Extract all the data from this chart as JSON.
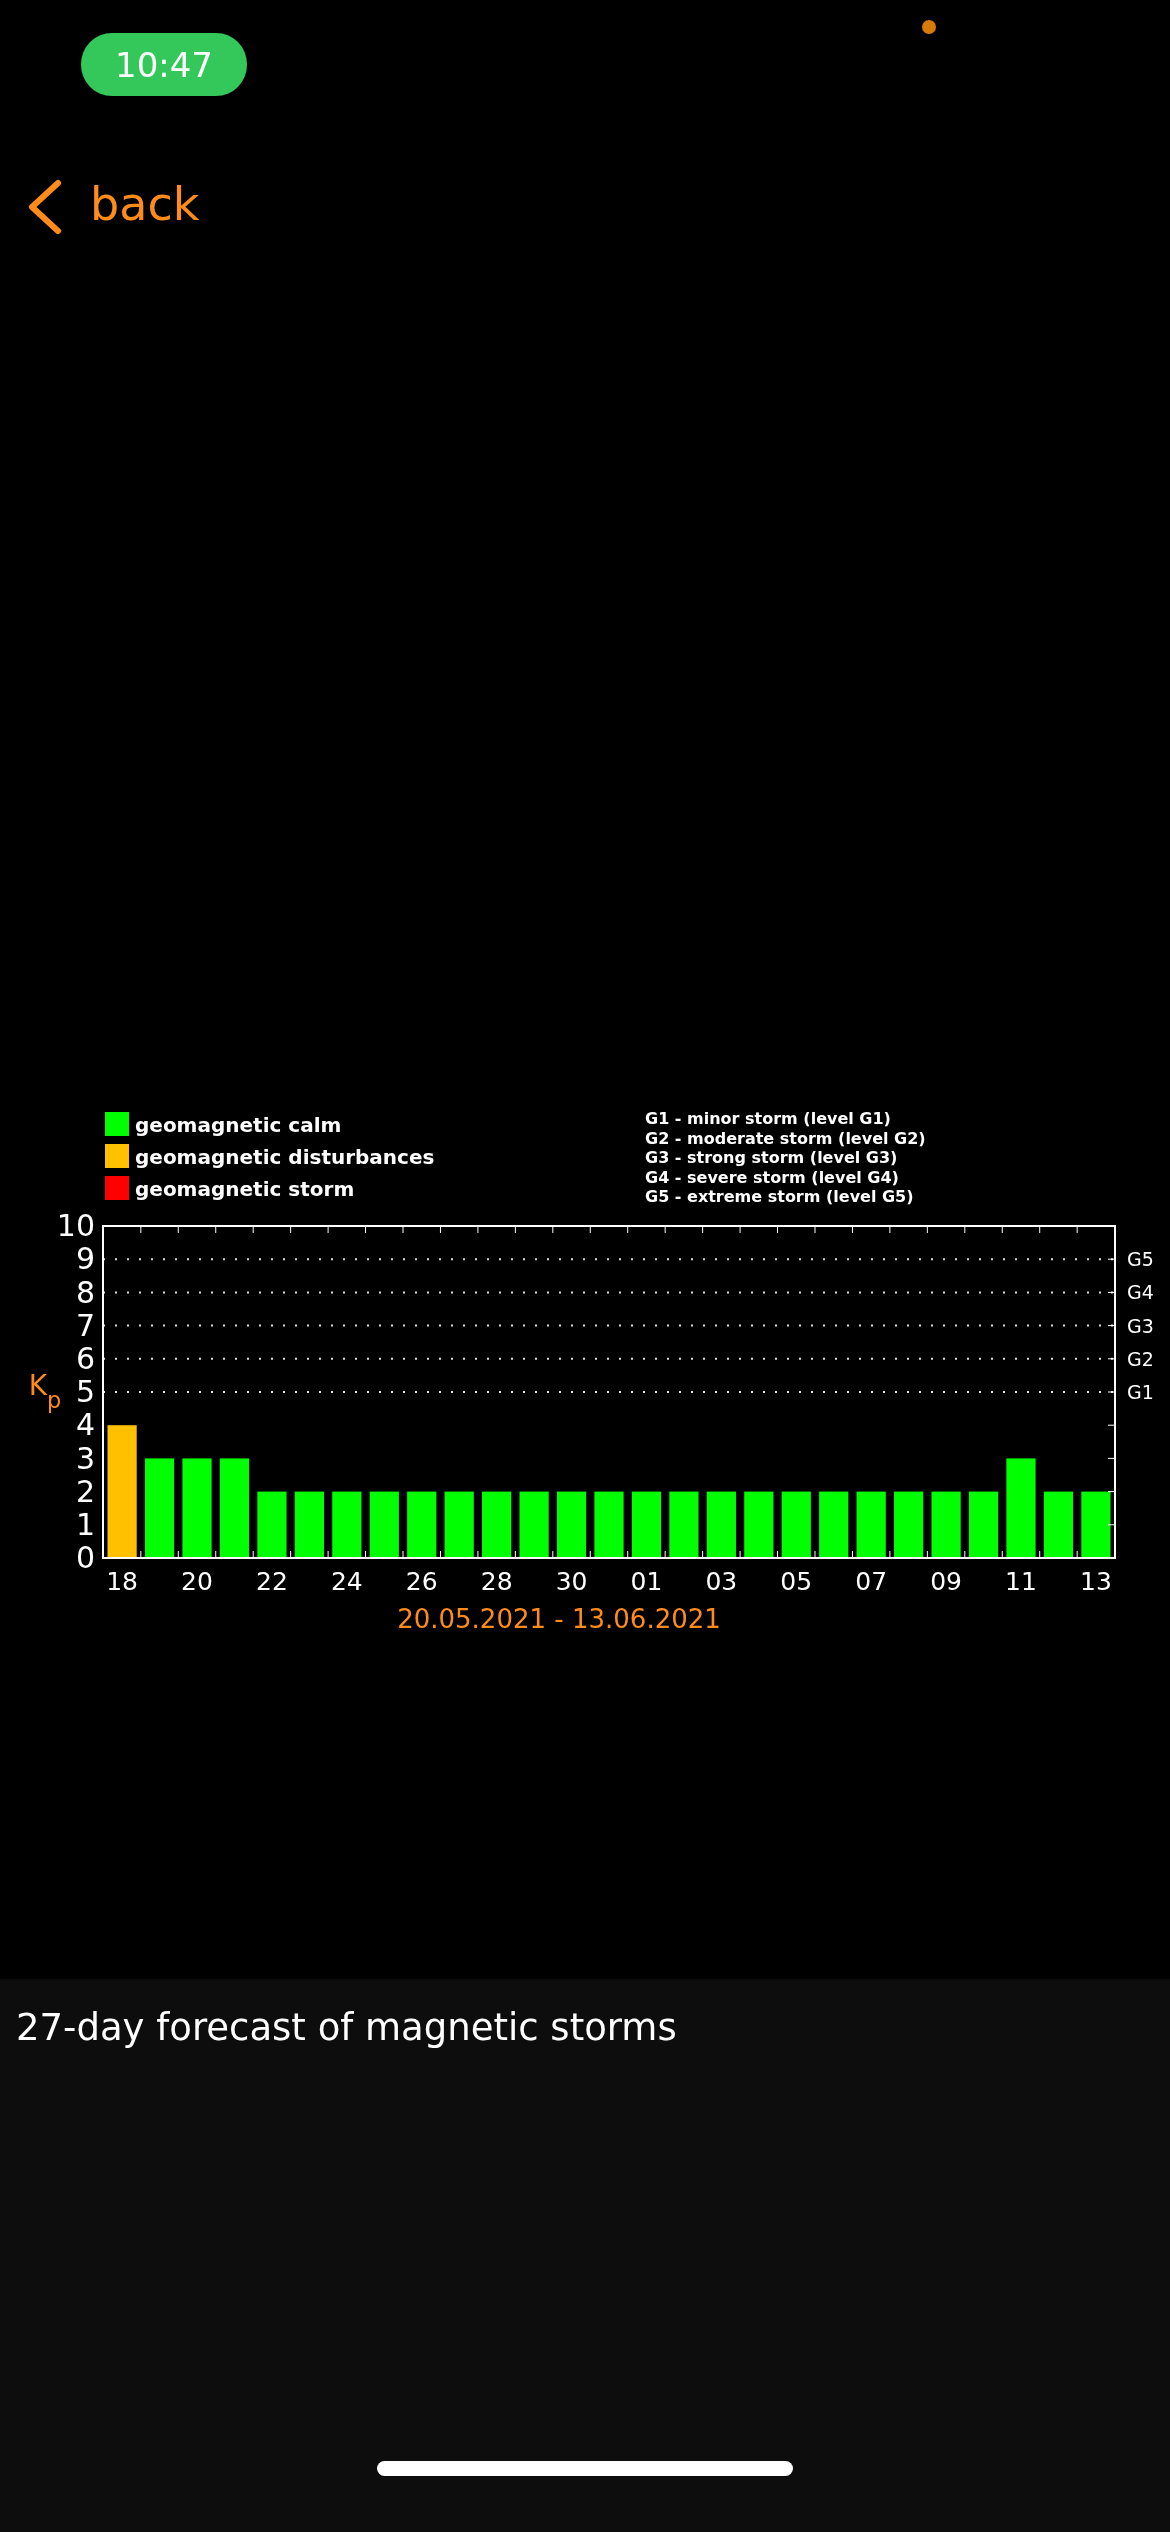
{
  "chart_data": {
    "type": "bar",
    "title": "27-day forecast of magnetic storms",
    "xlabel": "20.05.2021 - 13.06.2021",
    "ylabel": "K$_{p}$",
    "categories": [
      "18",
      null,
      "20",
      null,
      "22",
      null,
      "24",
      null,
      "26",
      null,
      "28",
      null,
      "30",
      null,
      "01",
      null,
      "03",
      null,
      "05",
      null,
      "07",
      null,
      "09",
      null,
      "11",
      null,
      "13"
    ],
    "series": [
      {
        "name": "geomagnetic calm",
        "color": "#00ff00",
        "values": [
          null,
          3,
          3,
          3,
          2,
          2,
          2,
          2,
          2,
          2,
          2,
          2,
          2,
          2,
          2,
          2,
          2,
          2,
          2,
          2,
          2,
          2,
          2,
          2,
          3,
          2,
          2
        ]
      },
      {
        "name": "geomagnetic disturbances",
        "color": "#ffc000",
        "values": [
          4,
          null,
          null,
          null,
          null,
          null,
          null,
          null,
          null,
          null,
          null,
          null,
          null,
          null,
          null,
          null,
          null,
          null,
          null,
          null,
          null,
          null,
          null,
          null,
          null,
          null,
          null
        ]
      },
      {
        "name": "geomagnetic storm",
        "color": "#ff0000",
        "values": [
          null,
          null,
          null,
          null,
          null,
          null,
          null,
          null,
          null,
          null,
          null,
          null,
          null,
          null,
          null,
          null,
          null,
          null,
          null,
          null,
          null,
          null,
          null,
          null,
          null,
          null,
          null
        ]
      }
    ],
    "ylim": [
      0,
      10
    ],
    "yticks": [
      0,
      1,
      2,
      3,
      4,
      5,
      6,
      7,
      8,
      9,
      10
    ],
    "ref_lines": [
      {
        "axis": "y",
        "value": 5,
        "label": "G1",
        "line_style": "dotted"
      },
      {
        "axis": "y",
        "value": 6,
        "label": "G2",
        "line_style": "dotted"
      },
      {
        "axis": "y",
        "value": 7,
        "label": "G3",
        "line_style": "dotted"
      },
      {
        "axis": "y",
        "value": 8,
        "label": "G4",
        "line_style": "dotted"
      },
      {
        "axis": "y",
        "value": 9,
        "label": "G5",
        "line_style": "dotted"
      }
    ],
    "legend": "top left",
    "annotations": [
      "G1 - minor storm (level G1)",
      "G2 - moderate storm (level G2)",
      "G3 - strong storm (level G3)",
      "G4 - severe storm (level G4)",
      "G5 - extreme storm (level G5)",
      "10:47",
      "back"
    ]
  }
}
